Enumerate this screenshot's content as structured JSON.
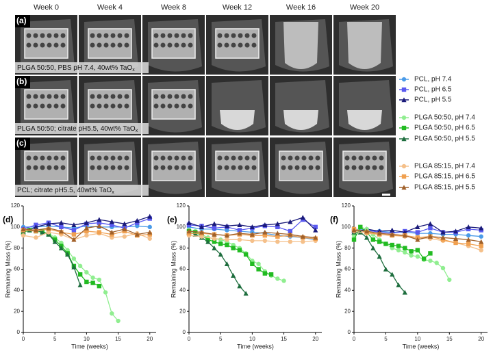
{
  "figure": {
    "columns": [
      "Week 0",
      "Week 4",
      "Week 8",
      "Week 12",
      "Week 16",
      "Week 20"
    ],
    "rows": [
      {
        "label": "(a)",
        "caption": "PLGA 50:50, PBS pH 7.4, 40wt% TaO",
        "caption_sub": "x"
      },
      {
        "label": "(b)",
        "caption": "PLGA 50:50; citrate pH5.5, 40wt% TaO",
        "caption_sub": "x"
      },
      {
        "label": "(c)",
        "caption": "PCL; citrate pH5.5, 40wt% TaO",
        "caption_sub": "x"
      }
    ]
  },
  "chart_data": [
    {
      "type": "line",
      "panel": "(d)",
      "xlabel": "Time (weeks)",
      "ylabel": "Remaining Mass (%)",
      "xlim": [
        0,
        21
      ],
      "ylim": [
        0,
        120
      ],
      "xticks": [
        0,
        5,
        10,
        15,
        20
      ],
      "yticks": [
        0,
        20,
        40,
        60,
        80,
        100,
        120
      ],
      "series": [
        {
          "name": "PCL, pH 7.4",
          "color": "#4a9be8",
          "marker": "circle",
          "x": [
            0,
            2,
            4,
            6,
            8,
            10,
            12,
            14,
            16,
            18,
            20
          ],
          "values": [
            100,
            100,
            101,
            100,
            99,
            101,
            100,
            100,
            100,
            101,
            100
          ]
        },
        {
          "name": "PCL, pH 6.5",
          "color": "#5a5af0",
          "marker": "square",
          "x": [
            0,
            2,
            4,
            6,
            8,
            10,
            12,
            14,
            16,
            18,
            20
          ],
          "values": [
            98,
            102,
            104,
            100,
            97,
            103,
            104,
            102,
            99,
            104,
            108
          ]
        },
        {
          "name": "PCL, pH 5.5",
          "color": "#1a1a7a",
          "marker": "triangle",
          "x": [
            0,
            2,
            4,
            6,
            8,
            10,
            12,
            14,
            16,
            18,
            20
          ],
          "values": [
            95,
            100,
            103,
            104,
            102,
            104,
            107,
            105,
            103,
            106,
            110
          ]
        },
        {
          "name": "PLGA 50:50, pH 7.4",
          "color": "#90ee90",
          "marker": "circle",
          "x": [
            0,
            1,
            2,
            3,
            4,
            5,
            6,
            7,
            8,
            9,
            10,
            11,
            12,
            13,
            14,
            15
          ],
          "values": [
            96,
            97,
            96,
            95,
            94,
            90,
            85,
            78,
            70,
            63,
            57,
            52,
            50,
            38,
            18,
            11
          ]
        },
        {
          "name": "PLGA 50:50, pH 6.5",
          "color": "#22bb22",
          "marker": "square",
          "x": [
            0,
            1,
            2,
            3,
            4,
            5,
            6,
            7,
            8,
            9,
            10,
            11,
            12
          ],
          "values": [
            95,
            97,
            96,
            96,
            93,
            88,
            82,
            75,
            63,
            55,
            48,
            47,
            44
          ]
        },
        {
          "name": "PLGA 50:50, pH 5.5",
          "color": "#1e6e3e",
          "marker": "triangle",
          "x": [
            0,
            1,
            2,
            3,
            4,
            5,
            6,
            7,
            8,
            9
          ],
          "values": [
            96,
            97,
            97,
            95,
            93,
            86,
            80,
            74,
            62,
            45
          ]
        },
        {
          "name": "PLGA 85:15, pH 7.4",
          "color": "#f5c08a",
          "marker": "circle",
          "x": [
            0,
            2,
            4,
            6,
            8,
            10,
            12,
            14,
            16,
            18,
            20
          ],
          "values": [
            92,
            90,
            95,
            93,
            88,
            92,
            94,
            90,
            91,
            94,
            89
          ]
        },
        {
          "name": "PLGA 85:15, pH 6.5",
          "color": "#f0a050",
          "marker": "square",
          "x": [
            0,
            2,
            4,
            6,
            8,
            10,
            12,
            14,
            16,
            18,
            20
          ],
          "values": [
            97,
            96,
            98,
            95,
            93,
            96,
            95,
            93,
            96,
            92,
            93
          ]
        },
        {
          "name": "PLGA 85:15, pH 5.5",
          "color": "#a0602a",
          "marker": "triangle",
          "x": [
            0,
            2,
            4,
            6,
            8,
            10,
            12,
            14,
            16,
            18,
            20
          ],
          "values": [
            98,
            97,
            99,
            96,
            88,
            99,
            101,
            95,
            98,
            93,
            95
          ]
        }
      ]
    },
    {
      "type": "line",
      "panel": "(e)",
      "xlabel": "Time (weeks)",
      "ylabel": "Remaining Mass (%)",
      "xlim": [
        0,
        21
      ],
      "ylim": [
        0,
        120
      ],
      "xticks": [
        0,
        5,
        10,
        15,
        20
      ],
      "yticks": [
        0,
        20,
        40,
        60,
        80,
        100,
        120
      ],
      "series": [
        {
          "color": "#4a9be8",
          "marker": "circle",
          "x": [
            0,
            2,
            4,
            6,
            8,
            10,
            12,
            14,
            16,
            18,
            20
          ],
          "values": [
            100,
            98,
            98,
            97,
            96,
            95,
            94,
            92,
            91,
            90,
            88
          ]
        },
        {
          "color": "#5a5af0",
          "marker": "square",
          "x": [
            0,
            2,
            4,
            6,
            8,
            10,
            12,
            14,
            16,
            18,
            20
          ],
          "values": [
            102,
            101,
            99,
            100,
            97,
            99,
            101,
            100,
            96,
            107,
            100
          ]
        },
        {
          "color": "#1a1a7a",
          "marker": "triangle",
          "x": [
            0,
            2,
            4,
            6,
            8,
            10,
            12,
            14,
            16,
            18,
            20
          ],
          "values": [
            104,
            100,
            103,
            101,
            102,
            100,
            102,
            103,
            105,
            109,
            97
          ]
        },
        {
          "color": "#90ee90",
          "marker": "circle",
          "x": [
            0,
            1,
            2,
            3,
            4,
            5,
            6,
            7,
            8,
            9,
            10,
            11,
            12,
            13,
            14,
            15
          ],
          "values": [
            97,
            96,
            93,
            90,
            89,
            88,
            86,
            83,
            80,
            75,
            68,
            65,
            58,
            54,
            51,
            49
          ]
        },
        {
          "color": "#22bb22",
          "marker": "square",
          "x": [
            0,
            1,
            2,
            3,
            4,
            5,
            6,
            7,
            8,
            9,
            10,
            11,
            12,
            13
          ],
          "values": [
            96,
            95,
            92,
            88,
            86,
            84,
            83,
            80,
            78,
            74,
            65,
            60,
            56,
            55
          ]
        },
        {
          "color": "#1e6e3e",
          "marker": "triangle",
          "x": [
            0,
            1,
            2,
            3,
            4,
            5,
            6,
            7,
            8,
            9
          ],
          "values": [
            95,
            93,
            90,
            86,
            80,
            74,
            65,
            54,
            44,
            37
          ]
        },
        {
          "color": "#f5c08a",
          "marker": "circle",
          "x": [
            0,
            2,
            4,
            6,
            8,
            10,
            12,
            14,
            16,
            18,
            20
          ],
          "values": [
            92,
            91,
            89,
            88,
            88,
            87,
            87,
            86,
            86,
            86,
            87
          ]
        },
        {
          "color": "#f0a050",
          "marker": "square",
          "x": [
            0,
            2,
            4,
            6,
            8,
            10,
            12,
            14,
            16,
            18,
            20
          ],
          "values": [
            94,
            94,
            93,
            92,
            93,
            92,
            92,
            91,
            92,
            90,
            89
          ]
        },
        {
          "color": "#a0602a",
          "marker": "triangle",
          "x": [
            0,
            2,
            4,
            6,
            8,
            10,
            12,
            14,
            16,
            18,
            20
          ],
          "values": [
            96,
            95,
            93,
            92,
            94,
            93,
            95,
            94,
            93,
            91,
            90
          ]
        }
      ]
    },
    {
      "type": "line",
      "panel": "(f)",
      "xlabel": "Time (weeks)",
      "ylabel": "Remaining Mass (%)",
      "xlim": [
        0,
        21
      ],
      "ylim": [
        0,
        120
      ],
      "xticks": [
        0,
        5,
        10,
        15,
        20
      ],
      "yticks": [
        0,
        20,
        40,
        60,
        80,
        100,
        120
      ],
      "series": [
        {
          "color": "#4a9be8",
          "marker": "circle",
          "x": [
            0,
            2,
            4,
            6,
            8,
            10,
            12,
            14,
            16,
            18,
            20
          ],
          "values": [
            98,
            97,
            96,
            95,
            95,
            94,
            94,
            93,
            93,
            92,
            91
          ]
        },
        {
          "color": "#5a5af0",
          "marker": "square",
          "x": [
            0,
            2,
            4,
            6,
            8,
            10,
            12,
            14,
            16,
            18,
            20
          ],
          "values": [
            96,
            97,
            95,
            94,
            96,
            95,
            99,
            95,
            95,
            98,
            97
          ]
        },
        {
          "color": "#1a1a7a",
          "marker": "triangle",
          "x": [
            0,
            2,
            4,
            6,
            8,
            10,
            12,
            14,
            16,
            18,
            20
          ],
          "values": [
            95,
            98,
            96,
            97,
            95,
            100,
            103,
            95,
            96,
            100,
            99
          ]
        },
        {
          "color": "#90ee90",
          "marker": "circle",
          "x": [
            0,
            1,
            2,
            3,
            4,
            5,
            6,
            7,
            8,
            9,
            10,
            11,
            12,
            13,
            14,
            15
          ],
          "values": [
            92,
            100,
            98,
            93,
            88,
            84,
            80,
            78,
            76,
            73,
            72,
            69,
            68,
            66,
            61,
            50
          ]
        },
        {
          "color": "#22bb22",
          "marker": "square",
          "x": [
            0,
            1,
            2,
            3,
            4,
            5,
            6,
            7,
            8,
            9,
            10,
            11,
            12
          ],
          "values": [
            88,
            100,
            95,
            88,
            86,
            84,
            83,
            82,
            80,
            77,
            78,
            70,
            75
          ]
        },
        {
          "color": "#1e6e3e",
          "marker": "triangle",
          "x": [
            0,
            1,
            2,
            3,
            4,
            5,
            6,
            7,
            8
          ],
          "values": [
            95,
            95,
            90,
            80,
            72,
            60,
            55,
            45,
            38
          ]
        },
        {
          "color": "#f5c08a",
          "marker": "circle",
          "x": [
            0,
            2,
            4,
            6,
            8,
            10,
            12,
            14,
            16,
            18,
            20
          ],
          "values": [
            96,
            94,
            93,
            92,
            91,
            90,
            89,
            87,
            85,
            82,
            78
          ]
        },
        {
          "color": "#f0a050",
          "marker": "square",
          "x": [
            0,
            2,
            4,
            6,
            8,
            10,
            12,
            14,
            16,
            18,
            20
          ],
          "values": [
            98,
            95,
            93,
            92,
            92,
            90,
            91,
            88,
            85,
            84,
            82
          ]
        },
        {
          "color": "#a0602a",
          "marker": "triangle",
          "x": [
            0,
            2,
            4,
            6,
            8,
            10,
            12,
            14,
            16,
            18,
            20
          ],
          "values": [
            97,
            96,
            94,
            93,
            92,
            88,
            91,
            90,
            89,
            88,
            86
          ]
        }
      ]
    }
  ]
}
